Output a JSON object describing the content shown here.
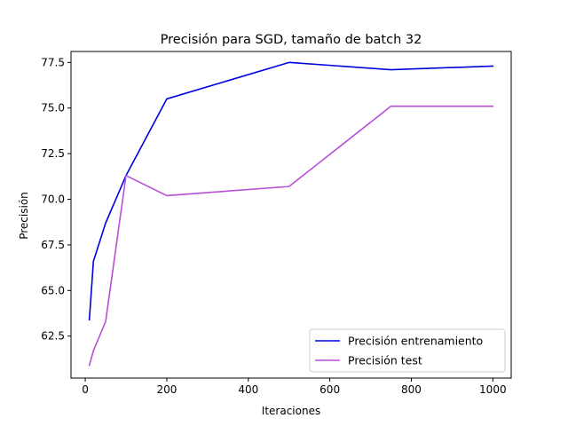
{
  "chart_data": {
    "type": "line",
    "title": "Precisión para SGD, tamaño de batch 32",
    "xlabel": "Iteraciones",
    "ylabel": "Precisión",
    "xlim": [
      -35,
      1045
    ],
    "ylim": [
      60.2,
      78.1
    ],
    "xticks": [
      0,
      200,
      400,
      600,
      800,
      1000
    ],
    "xtick_labels": [
      "0",
      "200",
      "400",
      "600",
      "800",
      "1000"
    ],
    "yticks": [
      62.5,
      65.0,
      67.5,
      70.0,
      72.5,
      75.0,
      77.5
    ],
    "ytick_labels": [
      "62.5",
      "65.0",
      "67.5",
      "70.0",
      "72.5",
      "75.0",
      "77.5"
    ],
    "grid": false,
    "legend_position": "lower-right",
    "series": [
      {
        "name": "Precisión entrenamiento",
        "color": "#0000e0",
        "x": [
          10,
          20,
          50,
          100,
          200,
          500,
          750,
          1000
        ],
        "y": [
          63.4,
          66.6,
          68.7,
          71.3,
          75.5,
          77.5,
          77.1,
          77.3
        ]
      },
      {
        "name": "Precisión test",
        "color": "#b84fd6",
        "x": [
          10,
          20,
          50,
          100,
          200,
          500,
          750,
          1000
        ],
        "y": [
          60.9,
          61.7,
          63.3,
          71.3,
          70.2,
          70.7,
          75.1,
          75.1
        ]
      }
    ]
  }
}
